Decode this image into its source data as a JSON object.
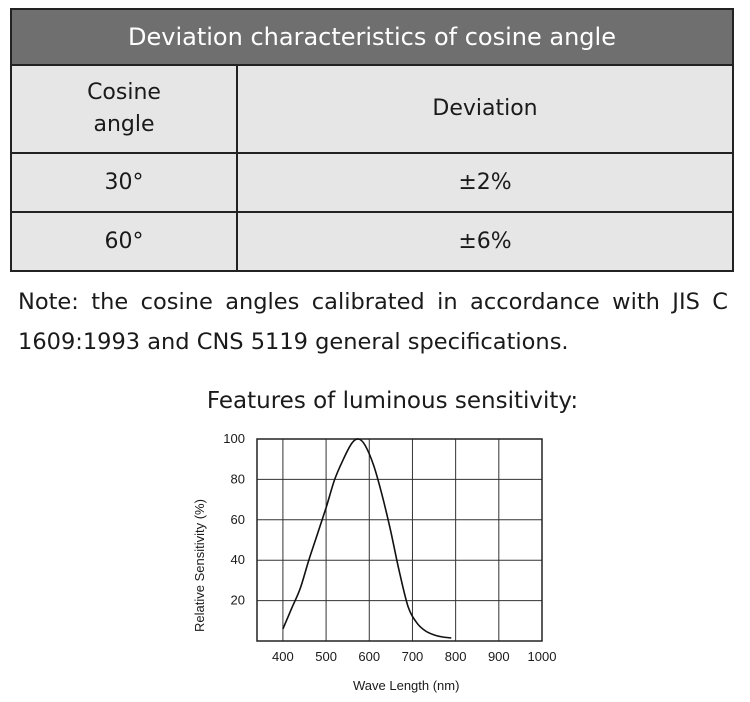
{
  "table": {
    "title": "Deviation characteristics of cosine angle",
    "headers": [
      "Cosine angle",
      "Deviation"
    ],
    "rows": [
      {
        "angle": "30°",
        "deviation": "±2%"
      },
      {
        "angle": "60°",
        "deviation": "±6%"
      }
    ],
    "colors": {
      "title_bg": "#6f6f6f",
      "cell_bg": "#e6e6e6"
    }
  },
  "note": "Note: the cosine angles calibrated in accordance with JIS  C  1609:1993 and CNS 5119 general specifications.",
  "chart_title": "Features of luminous sensitivity:",
  "chart_data": {
    "type": "line",
    "title": "",
    "xlabel": "Wave Length (nm)",
    "ylabel": "Relative Sensitivity (%)",
    "xlim": [
      340,
      1000
    ],
    "ylim": [
      0,
      100
    ],
    "x_ticks": [
      400,
      500,
      600,
      700,
      800,
      900,
      1000
    ],
    "y_ticks": [
      20,
      40,
      60,
      80,
      100
    ],
    "grid": true,
    "series": [
      {
        "x": [
          400,
          420,
          440,
          460,
          480,
          500,
          520,
          540,
          560,
          575,
          590,
          610,
          630,
          650,
          670,
          690,
          710,
          730,
          750,
          770,
          790
        ],
        "y": [
          6,
          16,
          26,
          40,
          53,
          66,
          80,
          90,
          98,
          100,
          97,
          87,
          72,
          54,
          34,
          17,
          9,
          5,
          3,
          2,
          1.5
        ]
      }
    ]
  }
}
